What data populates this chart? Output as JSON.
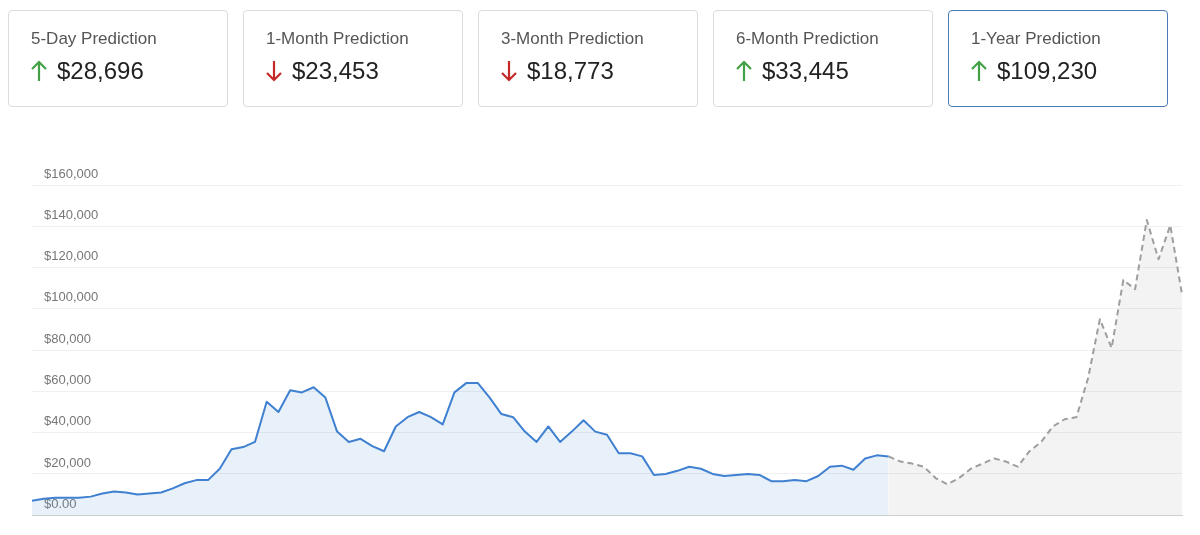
{
  "chart_data": [
    {
      "type": "other",
      "categories": [
        "5-Day Prediction",
        "1-Month Prediction",
        "3-Month Prediction",
        "6-Month Prediction",
        "1-Year Prediction"
      ],
      "value_labels": [
        "$28,696",
        "$23,453",
        "$18,773",
        "$33,445",
        "$109,230"
      ],
      "colors": [
        "#43a047",
        "#c62828",
        "#c62828",
        "#43a047",
        "#43a047"
      ]
    },
    {
      "type": "area",
      "categories": [
        null,
        null,
        null,
        null,
        null,
        null,
        null,
        null,
        null,
        null,
        null,
        null,
        null,
        null,
        null,
        null,
        null,
        null,
        null,
        null,
        null,
        null,
        null,
        null,
        null,
        null,
        null,
        null,
        null,
        null,
        null,
        null,
        null,
        null,
        null,
        null,
        null,
        null,
        null,
        null,
        null,
        null,
        null,
        null,
        null,
        null,
        null,
        null,
        null,
        null,
        null,
        null,
        null,
        null,
        null,
        null,
        null,
        null,
        null,
        null,
        null,
        null,
        null,
        null,
        null,
        null,
        null,
        null,
        null,
        null,
        null,
        null,
        null,
        null,
        null,
        null,
        null,
        null,
        null,
        null,
        null,
        null,
        null,
        null,
        null,
        null,
        null,
        null,
        null,
        null,
        null,
        null,
        null,
        null,
        null,
        null,
        null,
        null,
        null
      ],
      "series": [
        {
          "color": "#3f80d0",
          "line_style": "solid",
          "values": [
            7000,
            8000,
            8500,
            8500,
            8500,
            9000,
            10500,
            11500,
            11000,
            10000,
            10500,
            11000,
            13000,
            15500,
            17000,
            17000,
            22500,
            32000,
            33000,
            35500,
            55000,
            50000,
            60500,
            59500,
            62000,
            57000,
            40500,
            35500,
            37000,
            33500,
            31000,
            43000,
            47500,
            50000,
            47500,
            44000,
            59500,
            64000,
            64000,
            57000,
            49000,
            47500,
            40500,
            35500,
            43000,
            35500,
            40500,
            46000,
            40500,
            39000,
            30000,
            30000,
            28500,
            19500,
            20000,
            21500,
            23500,
            22500,
            20000,
            19000,
            19500,
            20000,
            19500,
            16500,
            16500,
            17000,
            16500,
            19000,
            23500,
            24000,
            22000,
            27500,
            29000,
            28500,
            null,
            null,
            null,
            null,
            null,
            null,
            null,
            null,
            null,
            null,
            null,
            null,
            null,
            null,
            null,
            null,
            null,
            null,
            null,
            null,
            null,
            null,
            null,
            null,
            null
          ]
        },
        {
          "color": "#9e9e9e",
          "line_style": "dashed",
          "values": [
            null,
            null,
            null,
            null,
            null,
            null,
            null,
            null,
            null,
            null,
            null,
            null,
            null,
            null,
            null,
            null,
            null,
            null,
            null,
            null,
            null,
            null,
            null,
            null,
            null,
            null,
            null,
            null,
            null,
            null,
            null,
            null,
            null,
            null,
            null,
            null,
            null,
            null,
            null,
            null,
            null,
            null,
            null,
            null,
            null,
            null,
            null,
            null,
            null,
            null,
            null,
            null,
            null,
            null,
            null,
            null,
            null,
            null,
            null,
            null,
            null,
            null,
            null,
            null,
            null,
            null,
            null,
            null,
            null,
            null,
            null,
            null,
            null,
            28500,
            26000,
            25000,
            23500,
            18000,
            15000,
            18000,
            22500,
            25000,
            27500,
            26000,
            23500,
            31000,
            35500,
            43000,
            46500,
            47500,
            66500,
            95000,
            81000,
            114000,
            109500,
            143000,
            124000,
            140500,
            107000
          ]
        }
      ],
      "ylim": [
        0,
        160000
      ],
      "yticks": [
        {
          "value": 0,
          "label": "$0.00"
        },
        {
          "value": 20000,
          "label": "$20,000"
        },
        {
          "value": 40000,
          "label": "$40,000"
        },
        {
          "value": 60000,
          "label": "$60,000"
        },
        {
          "value": 80000,
          "label": "$80,000"
        },
        {
          "value": 100000,
          "label": "$100,000"
        },
        {
          "value": 120000,
          "label": "$120,000"
        },
        {
          "value": 140000,
          "label": "$140,000"
        },
        {
          "value": 160000,
          "label": "$160,000"
        }
      ],
      "grid": "y",
      "legend": false,
      "marker": "none",
      "tick_labels": "y"
    }
  ]
}
